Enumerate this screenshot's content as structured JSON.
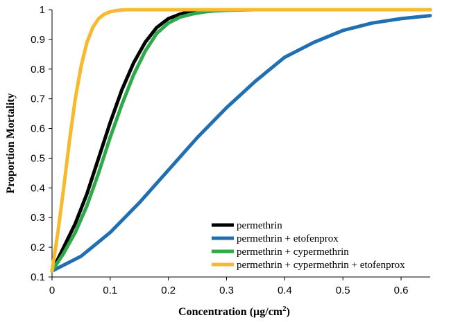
{
  "chart_data": {
    "type": "line",
    "xlabel_main": "Concentration (µg/cm",
    "xlabel_sup": "2",
    "xlabel_end": ")",
    "ylabel": "Proportion Mortality",
    "xlim": [
      0,
      0.65
    ],
    "ylim": [
      0.1,
      1.0
    ],
    "x_ticks": [
      "0",
      "0.1",
      "0.2",
      "0.3",
      "0.4",
      "0.5",
      "0.6"
    ],
    "y_ticks": [
      "0.1",
      "0.2",
      "0.3",
      "0.4",
      "0.5",
      "0.6",
      "0.7",
      "0.8",
      "0.9",
      "1"
    ],
    "grid": false,
    "legend_position": "bottom-right",
    "series": [
      {
        "name": "permethrin",
        "color": "#000000",
        "x": [
          0,
          0.02,
          0.04,
          0.06,
          0.08,
          0.1,
          0.12,
          0.14,
          0.16,
          0.18,
          0.2,
          0.22,
          0.24,
          0.26,
          0.3,
          0.35,
          0.4,
          0.5,
          0.65
        ],
        "y": [
          0.12,
          0.2,
          0.28,
          0.38,
          0.5,
          0.62,
          0.73,
          0.82,
          0.89,
          0.94,
          0.97,
          0.985,
          0.995,
          1.0,
          1.0,
          1.0,
          1.0,
          1.0,
          1.0
        ]
      },
      {
        "name": "permethrin + etofenprox",
        "color": "#1f6fb2",
        "x": [
          0,
          0.05,
          0.1,
          0.15,
          0.2,
          0.25,
          0.3,
          0.35,
          0.4,
          0.45,
          0.5,
          0.55,
          0.6,
          0.65
        ],
        "y": [
          0.12,
          0.17,
          0.25,
          0.35,
          0.46,
          0.57,
          0.67,
          0.76,
          0.84,
          0.89,
          0.93,
          0.955,
          0.97,
          0.98
        ]
      },
      {
        "name": "permethrin + cypermethrin",
        "color": "#2eaa4a",
        "x": [
          0,
          0.02,
          0.04,
          0.06,
          0.08,
          0.1,
          0.12,
          0.14,
          0.16,
          0.18,
          0.2,
          0.22,
          0.24,
          0.26,
          0.28,
          0.3,
          0.35,
          0.4,
          0.5,
          0.65
        ],
        "y": [
          0.12,
          0.18,
          0.25,
          0.34,
          0.45,
          0.57,
          0.68,
          0.78,
          0.86,
          0.92,
          0.955,
          0.975,
          0.985,
          0.992,
          0.996,
          0.998,
          1.0,
          1.0,
          1.0,
          1.0
        ]
      },
      {
        "name": "permethrin + cypermethrin + etofenprox",
        "color": "#f7b92e",
        "x": [
          0,
          0.01,
          0.02,
          0.03,
          0.04,
          0.05,
          0.06,
          0.07,
          0.08,
          0.09,
          0.1,
          0.11,
          0.12,
          0.13,
          0.15,
          0.2,
          0.3,
          0.4,
          0.5,
          0.65
        ],
        "y": [
          0.12,
          0.25,
          0.4,
          0.56,
          0.7,
          0.81,
          0.89,
          0.94,
          0.97,
          0.985,
          0.993,
          0.997,
          0.999,
          1.0,
          1.0,
          1.0,
          1.0,
          1.0,
          1.0,
          1.0
        ]
      }
    ]
  }
}
